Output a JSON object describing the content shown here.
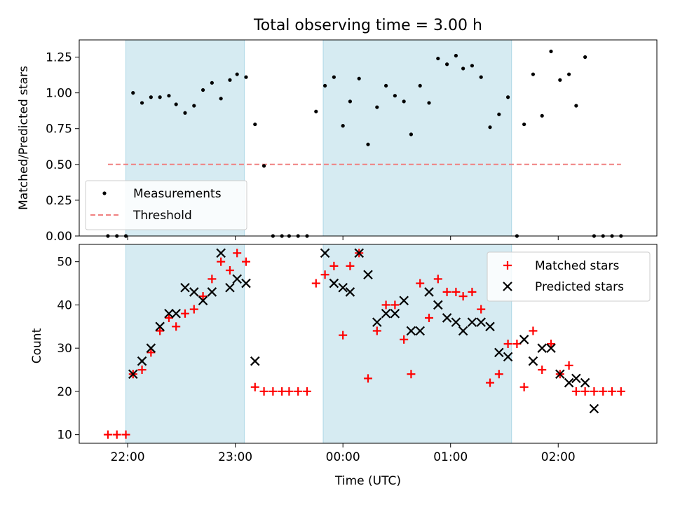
{
  "chart_data": [
    {
      "type": "scatter",
      "title": "Total observing time = 3.00 h",
      "xlabel": "",
      "ylabel": "Matched/Predicted stars",
      "xlim": [
        "21:33",
        "02:55"
      ],
      "ylim": [
        0,
        1.37
      ],
      "yticks": [
        0.0,
        0.25,
        0.5,
        0.75,
        1.0,
        1.25
      ],
      "ytick_labels": [
        "0.00",
        "0.25",
        "0.50",
        "0.75",
        "1.00",
        "1.25"
      ],
      "shaded_intervals": [
        [
          "21:59",
          "23:05"
        ],
        [
          "23:49",
          "01:34"
        ]
      ],
      "legend_position": "lower-left",
      "series": [
        {
          "name": "Measurements",
          "marker": "dot",
          "color": "#000000",
          "x": [
            "21:49",
            "21:54",
            "21:59",
            "22:03",
            "22:08",
            "22:13",
            "22:18",
            "22:23",
            "22:27",
            "22:32",
            "22:37",
            "22:42",
            "22:47",
            "22:52",
            "22:57",
            "23:01",
            "23:06",
            "23:11",
            "23:16",
            "23:21",
            "23:26",
            "23:30",
            "23:35",
            "23:40",
            "23:45",
            "23:50",
            "23:55",
            "00:00",
            "00:04",
            "00:09",
            "00:14",
            "00:19",
            "00:24",
            "00:29",
            "00:34",
            "00:38",
            "00:43",
            "00:48",
            "00:53",
            "00:58",
            "01:03",
            "01:07",
            "01:12",
            "01:17",
            "01:22",
            "01:27",
            "01:32",
            "01:37",
            "01:41",
            "01:46",
            "01:51",
            "01:56",
            "02:01",
            "02:06",
            "02:10",
            "02:15",
            "02:20",
            "02:25",
            "02:30",
            "02:35"
          ],
          "y": [
            0.0,
            0.0,
            0.0,
            1.0,
            0.93,
            0.97,
            0.97,
            0.98,
            0.92,
            0.86,
            0.91,
            1.02,
            1.07,
            0.96,
            1.09,
            1.13,
            1.11,
            0.78,
            0.49,
            0.0,
            0.0,
            0.0,
            0.0,
            0.0,
            0.87,
            1.05,
            1.11,
            0.77,
            0.94,
            1.1,
            0.64,
            0.9,
            1.05,
            0.98,
            0.94,
            0.71,
            1.05,
            0.93,
            1.24,
            1.2,
            1.26,
            1.17,
            1.19,
            1.11,
            0.76,
            0.85,
            0.97,
            0.0,
            0.78,
            1.13,
            0.84,
            1.29,
            1.09,
            1.13,
            0.91,
            1.25,
            0.0,
            0.0,
            0.0,
            0.0
          ]
        },
        {
          "name": "Threshold",
          "marker": "dashed-line",
          "color": "#f08080",
          "x": [
            "21:49",
            "02:35"
          ],
          "y": [
            0.5,
            0.5
          ]
        }
      ]
    },
    {
      "type": "scatter",
      "title": "",
      "xlabel": "Time (UTC)",
      "ylabel": "Count",
      "xlim": [
        "21:33",
        "02:55"
      ],
      "ylim": [
        8,
        54
      ],
      "xticks": [
        "22:00",
        "23:00",
        "00:00",
        "01:00",
        "02:00"
      ],
      "yticks": [
        10,
        20,
        30,
        40,
        50
      ],
      "ytick_labels": [
        "10",
        "20",
        "30",
        "40",
        "50"
      ],
      "shaded_intervals": [
        [
          "21:59",
          "23:05"
        ],
        [
          "23:49",
          "01:34"
        ]
      ],
      "legend_position": "upper-right",
      "series": [
        {
          "name": "Matched stars",
          "marker": "plus",
          "color": "#ff0000",
          "x": [
            "21:49",
            "21:54",
            "21:59",
            "22:03",
            "22:08",
            "22:13",
            "22:18",
            "22:23",
            "22:27",
            "22:32",
            "22:37",
            "22:42",
            "22:47",
            "22:52",
            "22:57",
            "23:01",
            "23:06",
            "23:11",
            "23:16",
            "23:21",
            "23:26",
            "23:30",
            "23:35",
            "23:40",
            "23:45",
            "23:50",
            "23:55",
            "00:00",
            "00:04",
            "00:09",
            "00:14",
            "00:19",
            "00:24",
            "00:29",
            "00:34",
            "00:38",
            "00:43",
            "00:48",
            "00:53",
            "00:58",
            "01:03",
            "01:07",
            "01:12",
            "01:17",
            "01:22",
            "01:27",
            "01:32",
            "01:37",
            "01:41",
            "01:46",
            "01:51",
            "01:56",
            "02:01",
            "02:06",
            "02:10",
            "02:15",
            "02:20",
            "02:25",
            "02:30",
            "02:35"
          ],
          "y": [
            10,
            10,
            10,
            24,
            25,
            29,
            34,
            37,
            35,
            38,
            39,
            42,
            46,
            50,
            48,
            52,
            50,
            21,
            20,
            20,
            20,
            20,
            20,
            20,
            45,
            47,
            49,
            33,
            49,
            52,
            23,
            34,
            40,
            40,
            32,
            24,
            45,
            37,
            46,
            43,
            43,
            42,
            43,
            39,
            22,
            24,
            31,
            31,
            21,
            34,
            25,
            31,
            24,
            26,
            20,
            20,
            20,
            20,
            20,
            20
          ]
        },
        {
          "name": "Predicted stars",
          "marker": "x",
          "color": "#000000",
          "x": [
            "22:03",
            "22:08",
            "22:13",
            "22:18",
            "22:23",
            "22:27",
            "22:32",
            "22:37",
            "22:42",
            "22:47",
            "22:52",
            "22:57",
            "23:01",
            "23:06",
            "23:11",
            "23:50",
            "23:55",
            "00:00",
            "00:04",
            "00:09",
            "00:14",
            "00:19",
            "00:24",
            "00:29",
            "00:34",
            "00:38",
            "00:43",
            "00:48",
            "00:53",
            "00:58",
            "01:03",
            "01:07",
            "01:12",
            "01:17",
            "01:22",
            "01:27",
            "01:32",
            "01:41",
            "01:46",
            "01:51",
            "01:56",
            "02:01",
            "02:06",
            "02:10",
            "02:15",
            "02:20"
          ],
          "y": [
            24,
            27,
            30,
            35,
            38,
            38,
            44,
            43,
            41,
            43,
            52,
            44,
            46,
            45,
            27,
            52,
            45,
            44,
            43,
            52,
            47,
            36,
            38,
            38,
            41,
            34,
            34,
            43,
            40,
            37,
            36,
            34,
            36,
            36,
            35,
            29,
            28,
            32,
            27,
            30,
            30,
            24,
            22,
            23,
            22,
            16
          ]
        }
      ]
    }
  ]
}
